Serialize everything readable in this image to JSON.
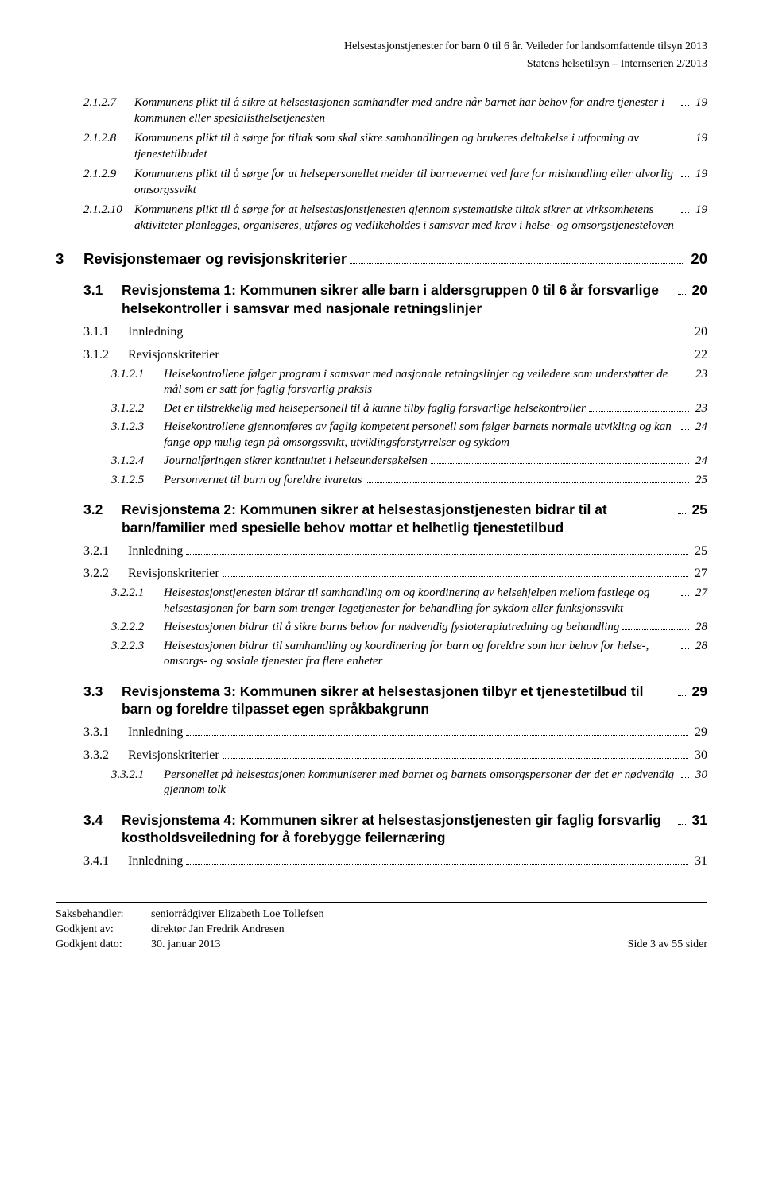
{
  "header": {
    "line1": "Helsestasjonstjenester for barn 0 til 6 år. Veileder for landsomfattende tilsyn 2013",
    "line2": "Statens helsetilsyn – Internserien 2/2013"
  },
  "toc": [
    {
      "level": "a",
      "num": "2.1.2.7",
      "italic": true,
      "text": "Kommunens plikt til å sikre at helsestasjonen samhandler med andre når barnet har behov for andre tjenester i kommunen eller spesialisthelsetjenesten",
      "page": "19"
    },
    {
      "level": "a",
      "num": "2.1.2.8",
      "italic": true,
      "text": "Kommunens plikt til å sørge for tiltak som skal sikre samhandlingen og brukeres deltakelse i utforming av tjenestetilbudet",
      "page": "19"
    },
    {
      "level": "a",
      "num": "2.1.2.9",
      "italic": true,
      "text": "Kommunens plikt til å sørge for at helsepersonellet melder til barnevernet ved fare for mishandling eller alvorlig omsorgssvikt",
      "page": "19"
    },
    {
      "level": "a",
      "num": "2.1.2.10",
      "italic": true,
      "text": "Kommunens plikt til å sørge for at helsestasjonstjenesten gjennom systematiske tiltak sikrer at virksomhetens aktiviteter planlegges, organiseres, utføres og vedlikeholdes i samsvar med krav i helse- og omsorgstjenesteloven",
      "page": "19"
    },
    {
      "level": "b",
      "num": "3",
      "bold": true,
      "text": "Revisjonstemaer og revisjonskriterier",
      "page": "20"
    },
    {
      "level": "c",
      "num": "3.1",
      "bold": true,
      "text": "Revisjonstema 1: Kommunen sikrer alle barn i aldersgruppen 0 til 6 år forsvarlige helsekontroller i samsvar med nasjonale retningslinjer",
      "page": "20"
    },
    {
      "level": "d",
      "num": "3.1.1",
      "text": "Innledning",
      "page": "20"
    },
    {
      "level": "d",
      "num": "3.1.2",
      "text": "Revisjonskriterier",
      "page": "22"
    },
    {
      "level": "e",
      "num": "3.1.2.1",
      "italic": true,
      "text": "Helsekontrollene følger program i samsvar med nasjonale retningslinjer og veiledere som understøtter de mål som er satt for faglig forsvarlig praksis",
      "page": "23"
    },
    {
      "level": "e",
      "num": "3.1.2.2",
      "italic": true,
      "text": "Det er tilstrekkelig med helsepersonell til å kunne tilby faglig forsvarlige helsekontroller",
      "page": "23"
    },
    {
      "level": "e",
      "num": "3.1.2.3",
      "italic": true,
      "text": "Helsekontrollene gjennomføres av faglig kompetent personell som følger barnets normale utvikling og kan fange opp mulig tegn på omsorgssvikt, utviklingsforstyrrelser og sykdom",
      "page": "24"
    },
    {
      "level": "e",
      "num": "3.1.2.4",
      "italic": true,
      "text": "Journalføringen sikrer kontinuitet i helseundersøkelsen",
      "page": "24"
    },
    {
      "level": "e",
      "num": "3.1.2.5",
      "italic": true,
      "text": "Personvernet til barn og foreldre ivaretas",
      "page": "25"
    },
    {
      "level": "c",
      "num": "3.2",
      "bold": true,
      "text": "Revisjonstema 2: Kommunen sikrer at helsestasjonstjenesten bidrar til at barn/familier med spesielle behov mottar et helhetlig tjenestetilbud",
      "page": "25"
    },
    {
      "level": "d",
      "num": "3.2.1",
      "text": "Innledning",
      "page": "25"
    },
    {
      "level": "d",
      "num": "3.2.2",
      "text": "Revisjonskriterier",
      "page": "27"
    },
    {
      "level": "e",
      "num": "3.2.2.1",
      "italic": true,
      "text": "Helsestasjonstjenesten bidrar til samhandling om og koordinering av helsehjelpen mellom fastlege og helsestasjonen for barn som trenger legetjenester for behandling for sykdom eller funksjonssvikt",
      "page": "27"
    },
    {
      "level": "e",
      "num": "3.2.2.2",
      "italic": true,
      "text": "Helsestasjonen bidrar til å sikre barns behov for nødvendig fysioterapiutredning og behandling",
      "page": "28"
    },
    {
      "level": "e",
      "num": "3.2.2.3",
      "italic": true,
      "text": "Helsestasjonen bidrar til samhandling og koordinering for barn og foreldre som har behov for helse-, omsorgs- og sosiale tjenester fra flere enheter",
      "page": "28"
    },
    {
      "level": "c",
      "num": "3.3",
      "bold": true,
      "text": "Revisjonstema 3: Kommunen sikrer at helsestasjonen tilbyr et tjenestetilbud til barn og foreldre tilpasset egen språkbakgrunn",
      "page": "29"
    },
    {
      "level": "d",
      "num": "3.3.1",
      "text": "Innledning",
      "page": "29"
    },
    {
      "level": "d",
      "num": "3.3.2",
      "text": "Revisjonskriterier",
      "page": "30"
    },
    {
      "level": "e",
      "num": "3.3.2.1",
      "italic": true,
      "text": "Personellet på helsestasjonen kommuniserer med barnet og barnets omsorgspersoner der det er nødvendig gjennom tolk",
      "page": "30"
    },
    {
      "level": "c",
      "num": "3.4",
      "bold": true,
      "text": "Revisjonstema 4: Kommunen sikrer at helsestasjonstjenesten gir faglig forsvarlig kostholdsveiledning for å forebygge feilernæring",
      "page": "31"
    },
    {
      "level": "d",
      "num": "3.4.1",
      "text": "Innledning",
      "page": "31"
    }
  ],
  "footer": {
    "rows": [
      {
        "label": "Saksbehandler:",
        "value": "seniorrådgiver Elizabeth Loe Tollefsen"
      },
      {
        "label": "Godkjent av:",
        "value": "direktør Jan Fredrik Andresen"
      },
      {
        "label": "Godkjent dato:",
        "value": "30. januar 2013"
      }
    ],
    "pageinfo": "Side 3 av 55 sider"
  }
}
